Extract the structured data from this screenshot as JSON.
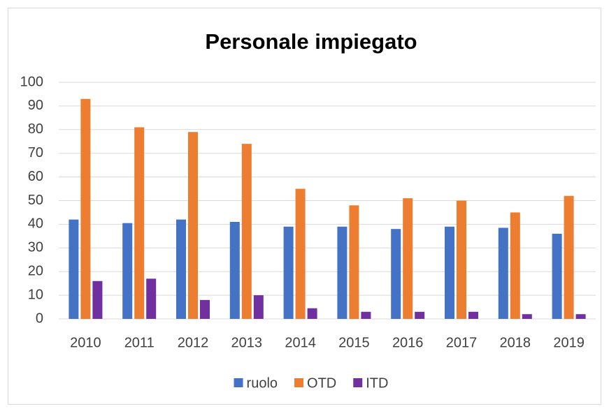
{
  "chart_data": {
    "type": "bar",
    "title": "Personale impiegato",
    "categories": [
      "2010",
      "2011",
      "2012",
      "2013",
      "2014",
      "2015",
      "2016",
      "2017",
      "2018",
      "2019"
    ],
    "series": [
      {
        "name": "ruolo",
        "color": "#4472c4",
        "values": [
          42,
          40.5,
          42,
          41,
          39,
          39,
          38,
          39,
          38.5,
          36
        ]
      },
      {
        "name": "OTD",
        "color": "#ed7d31",
        "values": [
          93,
          81,
          79,
          74,
          55,
          48,
          51,
          50,
          45,
          52
        ]
      },
      {
        "name": "ITD",
        "color": "#7030a0",
        "values": [
          16,
          17,
          8,
          10,
          4.5,
          3,
          3,
          3,
          2,
          2
        ]
      }
    ],
    "ylim": [
      0,
      100
    ],
    "yticks": [
      0,
      10,
      20,
      30,
      40,
      50,
      60,
      70,
      80,
      90,
      100
    ],
    "grid": true,
    "legend": "bottom"
  }
}
